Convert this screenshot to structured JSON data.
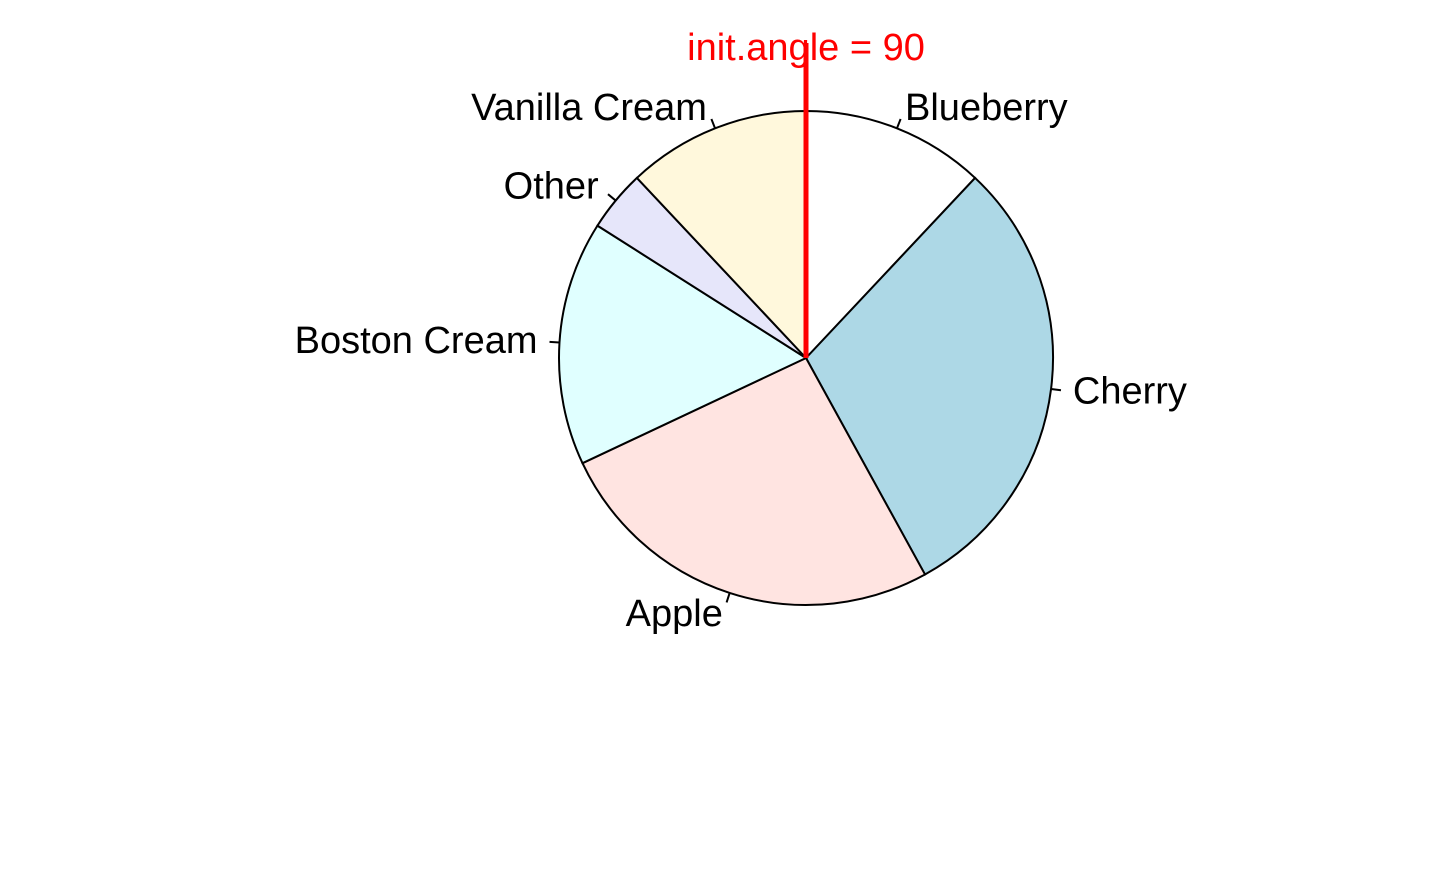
{
  "chart_data": {
    "type": "pie",
    "direction": "clockwise",
    "start_angle_deg": 90,
    "slices": [
      {
        "label": "Blueberry",
        "value": 12,
        "color": "#ffffff"
      },
      {
        "label": "Cherry",
        "value": 30,
        "color": "#add8e6"
      },
      {
        "label": "Apple",
        "value": 26,
        "color": "#ffe4e1"
      },
      {
        "label": "Boston Cream",
        "value": 16,
        "color": "#e0ffff"
      },
      {
        "label": "Other",
        "value": 4,
        "color": "#e6e6fa"
      },
      {
        "label": "Vanilla Cream",
        "value": 12,
        "color": "#fff8dc"
      }
    ],
    "annotation": {
      "text": "init.angle = 90",
      "color": "#ff0000"
    }
  }
}
